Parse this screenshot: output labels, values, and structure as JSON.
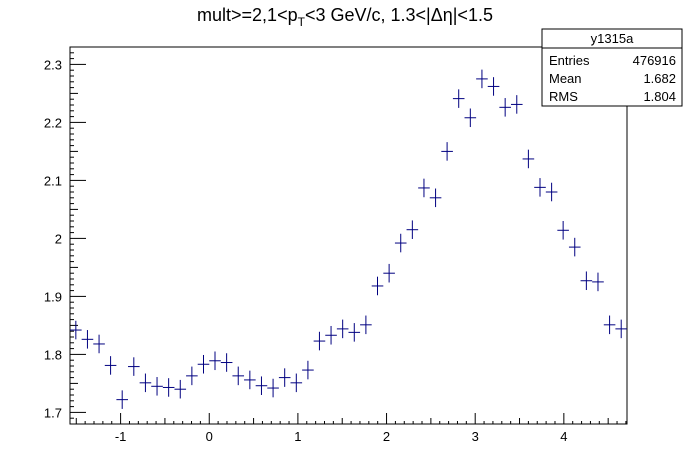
{
  "chart_data": {
    "type": "scatter",
    "title": {
      "prefix": "mult>=2,1<p",
      "sub": "T",
      "middle": "<3 GeV/c, 1.3<|",
      "delta": "Δ",
      "eta": "η",
      "suffix": "|<1.5"
    },
    "xlabel": "",
    "ylabel": "",
    "xlim": [
      -1.5708,
      4.7124
    ],
    "ylim": [
      1.68,
      2.33
    ],
    "xticks": [
      -1,
      0,
      1,
      2,
      3,
      4
    ],
    "yticks": [
      1.7,
      1.8,
      1.9,
      2,
      2.1,
      2.2,
      2.3
    ],
    "ytick_labels": [
      "1.7",
      "1.8",
      "1.9",
      "2",
      "2.1",
      "2.2",
      "2.3"
    ],
    "grid": false,
    "marker_color": "#000080",
    "series": [
      {
        "x_halfwidth": 0.0654,
        "points": [
          {
            "x": -1.505,
            "y": 1.842,
            "err": 0.016
          },
          {
            "x": -1.374,
            "y": 1.826,
            "err": 0.016
          },
          {
            "x": -1.243,
            "y": 1.818,
            "err": 0.016
          },
          {
            "x": -1.113,
            "y": 1.781,
            "err": 0.016
          },
          {
            "x": -0.982,
            "y": 1.722,
            "err": 0.016
          },
          {
            "x": -0.851,
            "y": 1.779,
            "err": 0.016
          },
          {
            "x": -0.72,
            "y": 1.751,
            "err": 0.016
          },
          {
            "x": -0.589,
            "y": 1.745,
            "err": 0.016
          },
          {
            "x": -0.458,
            "y": 1.743,
            "err": 0.016
          },
          {
            "x": -0.327,
            "y": 1.74,
            "err": 0.016
          },
          {
            "x": -0.196,
            "y": 1.763,
            "err": 0.016
          },
          {
            "x": -0.065,
            "y": 1.783,
            "err": 0.016
          },
          {
            "x": 0.065,
            "y": 1.789,
            "err": 0.016
          },
          {
            "x": 0.196,
            "y": 1.786,
            "err": 0.016
          },
          {
            "x": 0.327,
            "y": 1.763,
            "err": 0.016
          },
          {
            "x": 0.458,
            "y": 1.756,
            "err": 0.016
          },
          {
            "x": 0.589,
            "y": 1.746,
            "err": 0.016
          },
          {
            "x": 0.72,
            "y": 1.742,
            "err": 0.016
          },
          {
            "x": 0.851,
            "y": 1.76,
            "err": 0.016
          },
          {
            "x": 0.982,
            "y": 1.751,
            "err": 0.016
          },
          {
            "x": 1.113,
            "y": 1.773,
            "err": 0.016
          },
          {
            "x": 1.243,
            "y": 1.823,
            "err": 0.016
          },
          {
            "x": 1.374,
            "y": 1.833,
            "err": 0.016
          },
          {
            "x": 1.505,
            "y": 1.844,
            "err": 0.016
          },
          {
            "x": 1.636,
            "y": 1.838,
            "err": 0.016
          },
          {
            "x": 1.767,
            "y": 1.851,
            "err": 0.016
          },
          {
            "x": 1.898,
            "y": 1.918,
            "err": 0.016
          },
          {
            "x": 2.029,
            "y": 1.94,
            "err": 0.016
          },
          {
            "x": 2.16,
            "y": 1.992,
            "err": 0.016
          },
          {
            "x": 2.291,
            "y": 2.015,
            "err": 0.016
          },
          {
            "x": 2.422,
            "y": 2.087,
            "err": 0.016
          },
          {
            "x": 2.553,
            "y": 2.07,
            "err": 0.016
          },
          {
            "x": 2.683,
            "y": 2.15,
            "err": 0.016
          },
          {
            "x": 2.814,
            "y": 2.241,
            "err": 0.016
          },
          {
            "x": 2.945,
            "y": 2.208,
            "err": 0.016
          },
          {
            "x": 3.076,
            "y": 2.275,
            "err": 0.016
          },
          {
            "x": 3.207,
            "y": 2.262,
            "err": 0.016
          },
          {
            "x": 3.338,
            "y": 2.226,
            "err": 0.016
          },
          {
            "x": 3.469,
            "y": 2.231,
            "err": 0.016
          },
          {
            "x": 3.6,
            "y": 2.137,
            "err": 0.016
          },
          {
            "x": 3.731,
            "y": 2.088,
            "err": 0.016
          },
          {
            "x": 3.862,
            "y": 2.08,
            "err": 0.016
          },
          {
            "x": 3.992,
            "y": 2.014,
            "err": 0.016
          },
          {
            "x": 4.123,
            "y": 1.985,
            "err": 0.016
          },
          {
            "x": 4.254,
            "y": 1.927,
            "err": 0.016
          },
          {
            "x": 4.385,
            "y": 1.925,
            "err": 0.016
          },
          {
            "x": 4.516,
            "y": 1.851,
            "err": 0.016
          },
          {
            "x": 4.647,
            "y": 1.844,
            "err": 0.016
          }
        ]
      }
    ],
    "stats_box": {
      "name": "y1315a",
      "rows": [
        {
          "label": "Entries",
          "value": "476916"
        },
        {
          "label": "Mean",
          "value": "1.682"
        },
        {
          "label": "RMS",
          "value": "1.804"
        }
      ]
    }
  }
}
